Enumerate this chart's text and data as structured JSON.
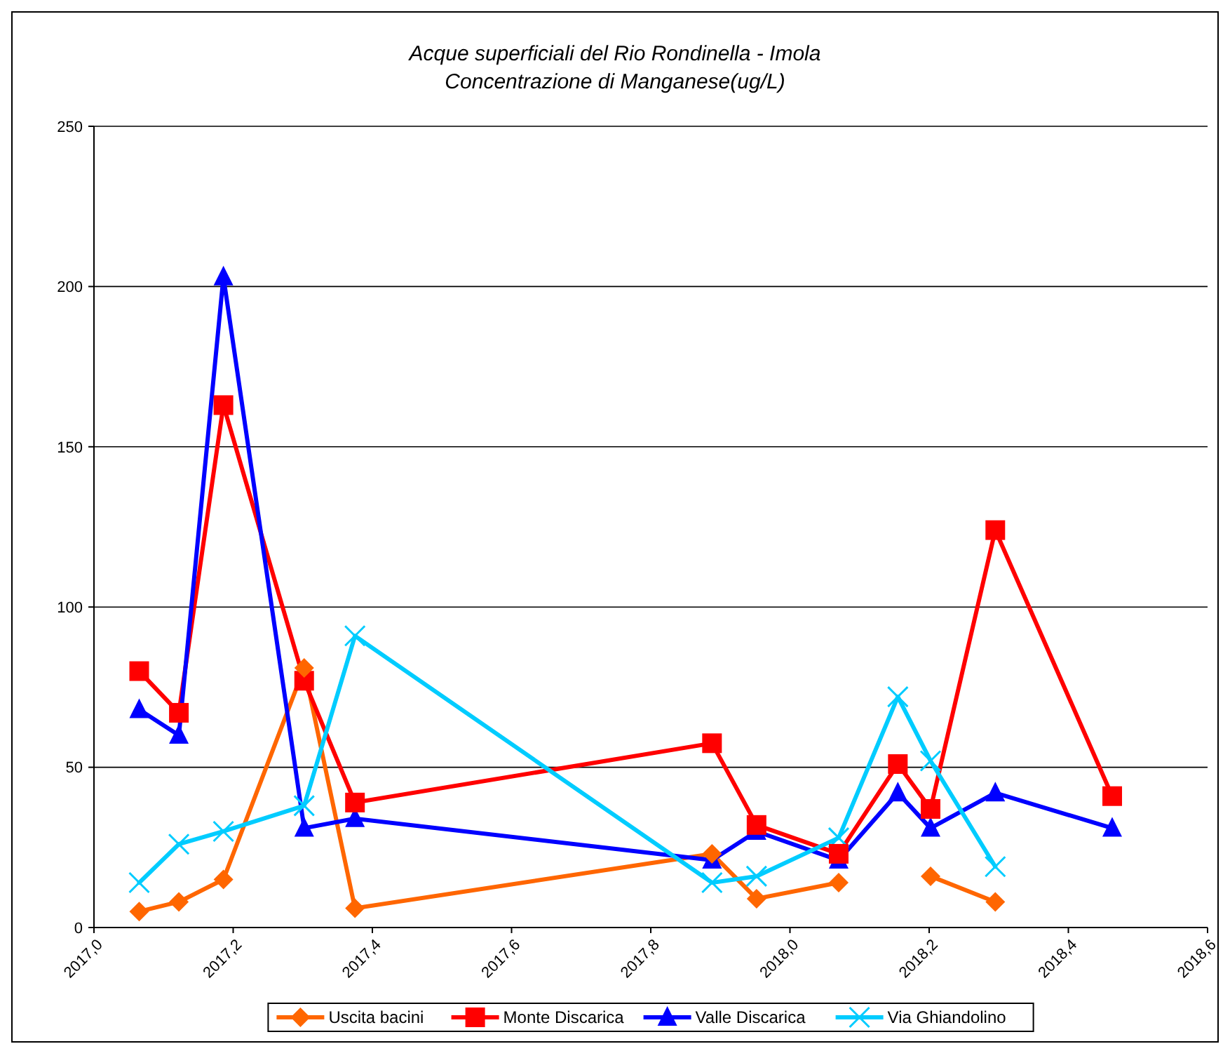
{
  "chart_data": {
    "type": "line",
    "title": "Acque superficiali del Rio Rondinella - Imola",
    "subtitle": "Concentrazione di Manganese(ug/L)",
    "x": [
      2017.065,
      2017.122,
      2017.186,
      2017.302,
      2017.375,
      2017.888,
      2017.952,
      2018.07,
      2018.155,
      2018.202,
      2018.295,
      2018.463
    ],
    "series": [
      {
        "name": "Uscita bacini",
        "color": "#ff6600",
        "marker": "diamond",
        "values": [
          5,
          8,
          15,
          81,
          6,
          23,
          9,
          14,
          null,
          16,
          8,
          null
        ]
      },
      {
        "name": "Monte Discarica",
        "color": "#ff0000",
        "marker": "square",
        "values": [
          80,
          67,
          163,
          77,
          39,
          57.5,
          32,
          23,
          51,
          37,
          124,
          41
        ]
      },
      {
        "name": "Valle Discarica",
        "color": "#0000ff",
        "marker": "triangle",
        "values": [
          68,
          60,
          203,
          31,
          34,
          21,
          30,
          21,
          42,
          31,
          42,
          31
        ]
      },
      {
        "name": "Via Ghiandolino",
        "color": "#00ccff",
        "marker": "cross",
        "values": [
          14,
          26,
          30,
          38,
          91,
          14,
          16,
          28,
          72,
          52,
          19,
          null
        ]
      }
    ],
    "xlim": [
      2017.0,
      2018.6
    ],
    "xticks": [
      {
        "value": 2017.0,
        "label": "2017,0"
      },
      {
        "value": 2017.2,
        "label": "2017,2"
      },
      {
        "value": 2017.4,
        "label": "2017,4"
      },
      {
        "value": 2017.6,
        "label": "2017,6"
      },
      {
        "value": 2017.8,
        "label": "2017,8"
      },
      {
        "value": 2018.0,
        "label": "2018,0"
      },
      {
        "value": 2018.2,
        "label": "2018,2"
      },
      {
        "value": 2018.4,
        "label": "2018,4"
      },
      {
        "value": 2018.6,
        "label": "2018,6"
      }
    ],
    "ylim": [
      0,
      250
    ],
    "yticks": [
      0,
      50,
      100,
      150,
      200,
      250
    ],
    "grid": "y",
    "legend": "bottom"
  }
}
